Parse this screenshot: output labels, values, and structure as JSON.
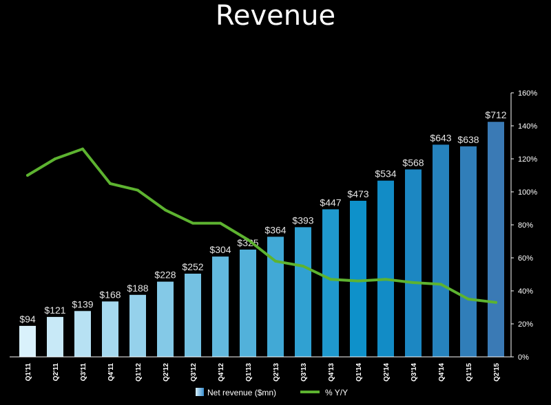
{
  "chart_data": {
    "type": "bar",
    "title": "Revenue",
    "categories": [
      "Q1'11",
      "Q2'11",
      "Q3'11",
      "Q4'11",
      "Q1'12",
      "Q2'12",
      "Q3'12",
      "Q4'12",
      "Q1'13",
      "Q2'13",
      "Q3'13",
      "Q4'13",
      "Q1'14",
      "Q2'14",
      "Q3'14",
      "Q4'14",
      "Q1'15",
      "Q2'15"
    ],
    "series": [
      {
        "name": "Net revenue ($mn)",
        "type": "bar",
        "axis": "left",
        "values": [
          94,
          121,
          139,
          168,
          188,
          228,
          252,
          304,
          325,
          364,
          393,
          447,
          473,
          534,
          568,
          643,
          638,
          712
        ],
        "labels": [
          "$94",
          "$121",
          "$139",
          "$168",
          "$188",
          "$228",
          "$252",
          "$304",
          "$325",
          "$364",
          "$393",
          "$447",
          "$473",
          "$534",
          "$568",
          "$643",
          "$638",
          "$712"
        ]
      },
      {
        "name": "% Y/Y",
        "type": "line",
        "axis": "right",
        "values": [
          110,
          120,
          126,
          105,
          101,
          89,
          81,
          81,
          71,
          58,
          55,
          47,
          46,
          47,
          45,
          44,
          35,
          33
        ]
      }
    ],
    "left_axis": {
      "min": 0,
      "max": 800,
      "visible": false
    },
    "right_axis": {
      "min": 0,
      "max": 160,
      "unit": "%",
      "ticks": [
        "0%",
        "20%",
        "40%",
        "60%",
        "80%",
        "100%",
        "120%",
        "140%",
        "160%"
      ]
    },
    "legend": {
      "position": "bottom"
    },
    "grid": false,
    "colors": {
      "background": "#000000",
      "text": "#ffffff",
      "line": "#5db330",
      "bar_start": "#d9f1fb",
      "bar_mid": "#0a8fc9",
      "bar_end": "#3a7ab5"
    }
  }
}
